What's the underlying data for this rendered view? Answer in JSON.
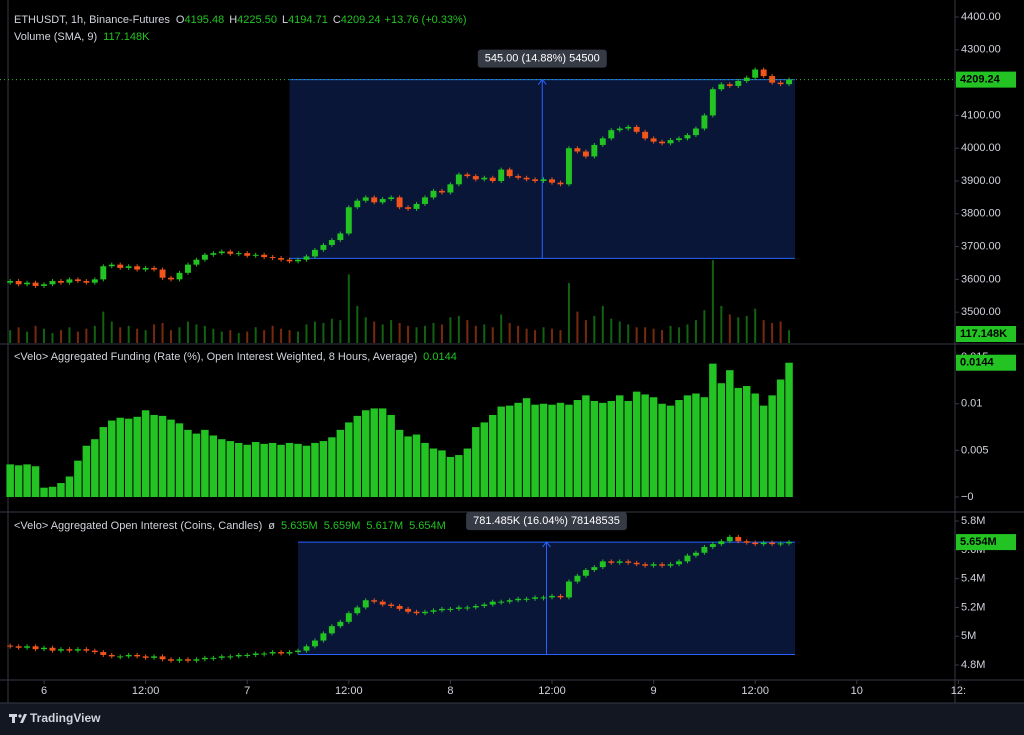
{
  "chart_data": [
    {
      "type": "candlestick",
      "title": "ETHUSDT, 1h, Binance-Futures",
      "ohlc": [
        {
          "label": "O",
          "value": "4195.48"
        },
        {
          "label": "H",
          "value": "4225.50"
        },
        {
          "label": "L",
          "value": "4194.71"
        },
        {
          "label": "C",
          "value": "4209.24"
        }
      ],
      "change": "+13.76 (+0.33%)",
      "volume_title": "Volume (SMA, 9)",
      "volume_sma": "117.148K",
      "x": [
        -4,
        -3,
        -2,
        -1,
        0,
        1,
        2,
        3,
        4,
        5,
        6,
        7,
        8,
        9,
        10,
        11,
        12,
        13,
        14,
        15,
        16,
        17,
        18,
        19,
        20,
        21,
        22,
        23,
        24,
        25,
        26,
        27,
        28,
        29,
        30,
        31,
        32,
        33,
        34,
        35,
        36,
        37,
        38,
        39,
        40,
        41,
        42,
        43,
        44,
        45,
        46,
        47,
        48,
        49,
        50,
        51,
        52,
        53,
        54,
        55,
        56,
        57,
        58,
        59,
        60,
        61,
        62,
        63,
        64,
        65,
        66,
        67,
        68,
        69,
        70,
        71,
        72,
        73,
        74,
        75,
        76,
        77,
        78,
        79,
        80,
        81,
        82,
        83,
        84,
        85,
        86,
        87,
        88
      ],
      "first_open": 3590,
      "close": [
        3595,
        3585,
        3590,
        3580,
        3585,
        3595,
        3590,
        3600,
        3595,
        3590,
        3600,
        3640,
        3645,
        3635,
        3640,
        3630,
        3635,
        3630,
        3605,
        3600,
        3620,
        3645,
        3660,
        3675,
        3680,
        3685,
        3678,
        3680,
        3672,
        3675,
        3668,
        3665,
        3660,
        3655,
        3660,
        3670,
        3690,
        3705,
        3720,
        3740,
        3820,
        3840,
        3850,
        3835,
        3845,
        3850,
        3820,
        3815,
        3830,
        3850,
        3870,
        3865,
        3890,
        3920,
        3915,
        3905,
        3910,
        3900,
        3935,
        3915,
        3910,
        3905,
        3900,
        3905,
        3895,
        3890,
        4000,
        3990,
        3975,
        4010,
        4030,
        4055,
        4060,
        4065,
        4050,
        4030,
        4020,
        4015,
        4025,
        4030,
        4040,
        4060,
        4100,
        4180,
        4195,
        4190,
        4205,
        4215,
        4240,
        4220,
        4200,
        4195.48,
        4209.24
      ],
      "volume": [
        90,
        110,
        80,
        120,
        100,
        70,
        90,
        110,
        80,
        100,
        120,
        220,
        150,
        110,
        120,
        100,
        90,
        130,
        140,
        90,
        110,
        150,
        130,
        120,
        100,
        80,
        90,
        70,
        80,
        110,
        90,
        120,
        100,
        90,
        80,
        130,
        150,
        140,
        170,
        160,
        480,
        260,
        180,
        150,
        130,
        160,
        140,
        120,
        110,
        120,
        140,
        130,
        180,
        190,
        160,
        120,
        130,
        110,
        200,
        140,
        120,
        100,
        90,
        110,
        100,
        90,
        420,
        220,
        160,
        190,
        260,
        170,
        150,
        130,
        110,
        110,
        100,
        90,
        120,
        110,
        130,
        160,
        230,
        580,
        260,
        200,
        180,
        190,
        240,
        160,
        140,
        150,
        90
      ],
      "volume_ylim": [
        0,
        2400
      ],
      "up_color": "#22c322",
      "down_color": "#f2541b",
      "ylim": [
        3406,
        4452
      ],
      "yticks": [
        {
          "value": 3500,
          "label": "3500.00"
        },
        {
          "value": 3600,
          "label": "3600.00"
        },
        {
          "value": 3700,
          "label": "3700.00"
        },
        {
          "value": 3800,
          "label": "3800.00"
        },
        {
          "value": 3900,
          "label": "3900.00"
        },
        {
          "value": 4000,
          "label": "4000.00"
        },
        {
          "value": 4100,
          "label": "4100.00"
        },
        {
          "value": 4200,
          "label": "4200.00"
        },
        {
          "value": 4300,
          "label": "4300.00"
        },
        {
          "value": 4400,
          "label": "4400.00"
        }
      ],
      "measure": {
        "label": "545.00 (14.88%) 54500",
        "x": [
          29,
          88.7
        ],
        "y": [
          3664.24,
          4209.24
        ]
      }
    },
    {
      "type": "bar",
      "title": "<Velo> Aggregated Funding (Rate (%), Open Interest Weighted, 8 Hours, Average)",
      "x": [
        -4,
        -3,
        -2,
        -1,
        0,
        1,
        2,
        3,
        4,
        5,
        6,
        7,
        8,
        9,
        10,
        11,
        12,
        13,
        14,
        15,
        16,
        17,
        18,
        19,
        20,
        21,
        22,
        23,
        24,
        25,
        26,
        27,
        28,
        29,
        30,
        31,
        32,
        33,
        34,
        35,
        36,
        37,
        38,
        39,
        40,
        41,
        42,
        43,
        44,
        45,
        46,
        47,
        48,
        49,
        50,
        51,
        52,
        53,
        54,
        55,
        56,
        57,
        58,
        59,
        60,
        61,
        62,
        63,
        64,
        65,
        66,
        67,
        68,
        69,
        70,
        71,
        72,
        73,
        74,
        75,
        76,
        77,
        78,
        79,
        80,
        81,
        82,
        83,
        84,
        85,
        86,
        87,
        88
      ],
      "values": [
        0.0035,
        0.0034,
        0.0035,
        0.0033,
        0.001,
        0.0011,
        0.0015,
        0.0022,
        0.0039,
        0.0055,
        0.0062,
        0.0075,
        0.0082,
        0.0085,
        0.0084,
        0.0086,
        0.0093,
        0.0088,
        0.0087,
        0.0083,
        0.0079,
        0.0072,
        0.0068,
        0.0072,
        0.0066,
        0.0062,
        0.006,
        0.0058,
        0.0056,
        0.0059,
        0.0057,
        0.0058,
        0.0056,
        0.0058,
        0.0057,
        0.0055,
        0.0058,
        0.006,
        0.0064,
        0.0072,
        0.008,
        0.0087,
        0.0093,
        0.0095,
        0.0095,
        0.0088,
        0.0072,
        0.0065,
        0.0067,
        0.0058,
        0.0052,
        0.005,
        0.0043,
        0.0045,
        0.0052,
        0.0075,
        0.008,
        0.0088,
        0.0097,
        0.0098,
        0.0101,
        0.0106,
        0.0099,
        0.01,
        0.0099,
        0.0101,
        0.0099,
        0.0104,
        0.0109,
        0.0103,
        0.0101,
        0.0103,
        0.0109,
        0.0103,
        0.0113,
        0.011,
        0.0107,
        0.01,
        0.0098,
        0.0104,
        0.0109,
        0.0111,
        0.0107,
        0.0143,
        0.0122,
        0.0136,
        0.0117,
        0.0119,
        0.0111,
        0.0098,
        0.0109,
        0.0126,
        0.0144
      ],
      "color": "#22c322",
      "ylim": [
        -0.0015,
        0.0163
      ],
      "yticks": [
        {
          "value": 0,
          "label": "−0"
        },
        0.005,
        0.01,
        0.015
      ]
    },
    {
      "type": "candlestick",
      "title": "<Velo> Aggregated Open Interest (Coins, Candles)",
      "status_icon": "ø",
      "ohlc_values": [
        "5.635M",
        "5.659M",
        "5.617M",
        "5.654M"
      ],
      "x": [
        -4,
        -3,
        -2,
        -1,
        0,
        1,
        2,
        3,
        4,
        5,
        6,
        7,
        8,
        9,
        10,
        11,
        12,
        13,
        14,
        15,
        16,
        17,
        18,
        19,
        20,
        21,
        22,
        23,
        24,
        25,
        26,
        27,
        28,
        29,
        30,
        31,
        32,
        33,
        34,
        35,
        36,
        37,
        38,
        39,
        40,
        41,
        42,
        43,
        44,
        45,
        46,
        47,
        48,
        49,
        50,
        51,
        52,
        53,
        54,
        55,
        56,
        57,
        58,
        59,
        60,
        61,
        62,
        63,
        64,
        65,
        66,
        67,
        68,
        69,
        70,
        71,
        72,
        73,
        74,
        75,
        76,
        77,
        78,
        79,
        80,
        81,
        82,
        83,
        84,
        85,
        86,
        87,
        88
      ],
      "first_open": 4.935,
      "close": [
        4.93,
        4.92,
        4.93,
        4.91,
        4.92,
        4.9,
        4.91,
        4.9,
        4.91,
        4.9,
        4.89,
        4.87,
        4.86,
        4.86,
        4.87,
        4.86,
        4.85,
        4.86,
        4.84,
        4.83,
        4.84,
        4.83,
        4.84,
        4.85,
        4.85,
        4.86,
        4.86,
        4.87,
        4.87,
        4.88,
        4.88,
        4.89,
        4.88,
        4.89,
        4.9,
        4.93,
        4.97,
        5.02,
        5.07,
        5.1,
        5.16,
        5.2,
        5.25,
        5.24,
        5.22,
        5.21,
        5.19,
        5.17,
        5.16,
        5.17,
        5.18,
        5.19,
        5.19,
        5.2,
        5.2,
        5.21,
        5.22,
        5.24,
        5.24,
        5.25,
        5.26,
        5.26,
        5.27,
        5.27,
        5.28,
        5.27,
        5.38,
        5.42,
        5.46,
        5.48,
        5.52,
        5.51,
        5.52,
        5.51,
        5.5,
        5.49,
        5.5,
        5.49,
        5.5,
        5.52,
        5.56,
        5.58,
        5.62,
        5.64,
        5.66,
        5.69,
        5.66,
        5.65,
        5.64,
        5.65,
        5.64,
        5.645,
        5.654
      ],
      "last_label": "5.654M",
      "up_color": "#22c322",
      "down_color": "#f2541b",
      "ylim": [
        4.696,
        5.856
      ],
      "yticks": [
        {
          "value": 4.8,
          "label": "4.8M"
        },
        {
          "value": 5,
          "label": "5M"
        },
        {
          "value": 5.2,
          "label": "5.2M"
        },
        {
          "value": 5.4,
          "label": "5.4M"
        },
        {
          "value": 5.6,
          "label": "5.6M"
        },
        {
          "value": 5.8,
          "label": "5.8M"
        }
      ],
      "xlim": [
        -5.2,
        107.6
      ],
      "xticks": [
        {
          "value": 0,
          "label": "6"
        },
        {
          "value": 12,
          "label": "12:00"
        },
        {
          "value": 24,
          "label": "7"
        },
        {
          "value": 36,
          "label": "12:00"
        },
        {
          "value": 48,
          "label": "8"
        },
        {
          "value": 60,
          "label": "12:00"
        },
        {
          "value": 72,
          "label": "9"
        },
        {
          "value": 84,
          "label": "12:00"
        },
        {
          "value": 96,
          "label": "10"
        },
        {
          "value": 108,
          "label": "12:"
        }
      ],
      "measure": {
        "label": "781.485K (16.04%) 78148535",
        "x": [
          30,
          88.7
        ],
        "y": [
          4.873,
          5.654
        ]
      }
    }
  ],
  "footer": {
    "brand": "TradingView"
  }
}
